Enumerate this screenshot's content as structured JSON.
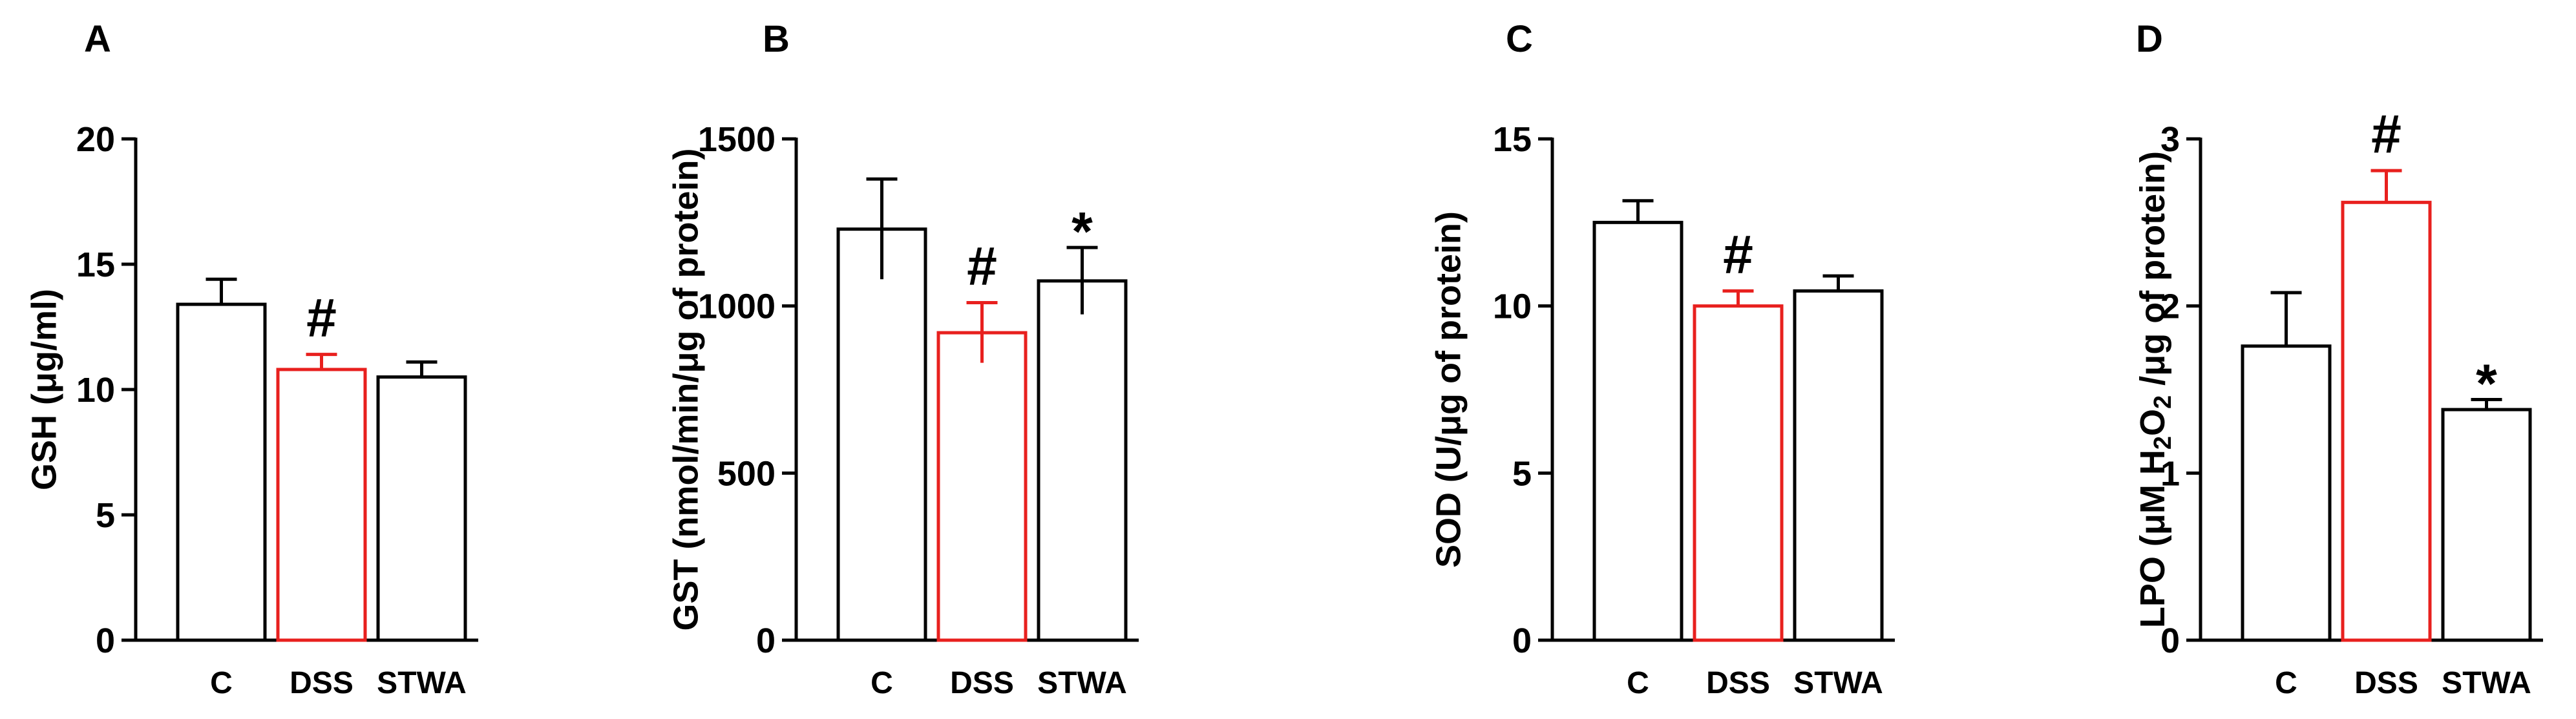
{
  "colors": {
    "control": "#000000",
    "dss": "#e8201e",
    "axis": "#000000"
  },
  "chart_data": [
    {
      "type": "bar",
      "panel": "A",
      "title": "",
      "xlabel": "",
      "ylabel": "GSH (μg/ml)",
      "ylim": [
        0,
        20
      ],
      "yticks": [
        0,
        5,
        10,
        15,
        20
      ],
      "ytick_labels": [
        "0",
        "5",
        "10",
        "15",
        "20"
      ],
      "categories": [
        "C",
        "DSS",
        "STWA"
      ],
      "values": [
        13.4,
        10.8,
        10.5
      ],
      "errors": [
        1.0,
        0.6,
        0.6
      ],
      "error_mode": "up",
      "annotations": [
        "",
        "#",
        ""
      ],
      "bar_colors": [
        "#000000",
        "#e8201e",
        "#000000"
      ]
    },
    {
      "type": "bar",
      "panel": "B",
      "title": "",
      "xlabel": "",
      "ylabel": "GST (nmol/min/μg of protein)",
      "ylim": [
        0,
        1500
      ],
      "yticks": [
        0,
        500,
        1000,
        1500
      ],
      "ytick_labels": [
        "0",
        "500",
        "1000",
        "1500"
      ],
      "categories": [
        "C",
        "DSS",
        "STWA"
      ],
      "values": [
        1230,
        920,
        1075
      ],
      "errors": [
        150,
        90,
        100
      ],
      "error_mode": "both",
      "annotations": [
        "",
        "#",
        "*"
      ],
      "bar_colors": [
        "#000000",
        "#e8201e",
        "#000000"
      ]
    },
    {
      "type": "bar",
      "panel": "C",
      "title": "",
      "xlabel": "",
      "ylabel": "SOD (U/μg of protein)",
      "ylim": [
        0,
        15
      ],
      "yticks": [
        0,
        5,
        10,
        15
      ],
      "ytick_labels": [
        "0",
        "5",
        "10",
        "15"
      ],
      "categories": [
        "C",
        "DSS",
        "STWA"
      ],
      "values": [
        12.5,
        10.0,
        10.45
      ],
      "errors": [
        0.65,
        0.45,
        0.45
      ],
      "error_mode": "up",
      "annotations": [
        "",
        "#",
        ""
      ],
      "bar_colors": [
        "#000000",
        "#e8201e",
        "#000000"
      ]
    },
    {
      "type": "bar",
      "panel": "D",
      "title": "",
      "xlabel": "",
      "ylabel_parts": [
        "LPO (μM H",
        "2",
        "O",
        "2",
        " /μg of protein)"
      ],
      "ylim": [
        0,
        3
      ],
      "yticks": [
        0,
        1,
        2,
        3
      ],
      "ytick_labels": [
        "0",
        "1",
        "2",
        "3"
      ],
      "categories": [
        "C",
        "DSS",
        "STWA"
      ],
      "values": [
        1.76,
        2.62,
        1.38
      ],
      "errors": [
        0.32,
        0.19,
        0.06
      ],
      "error_mode": "up",
      "annotations": [
        "",
        "#",
        "*"
      ],
      "bar_colors": [
        "#000000",
        "#e8201e",
        "#000000"
      ]
    }
  ]
}
